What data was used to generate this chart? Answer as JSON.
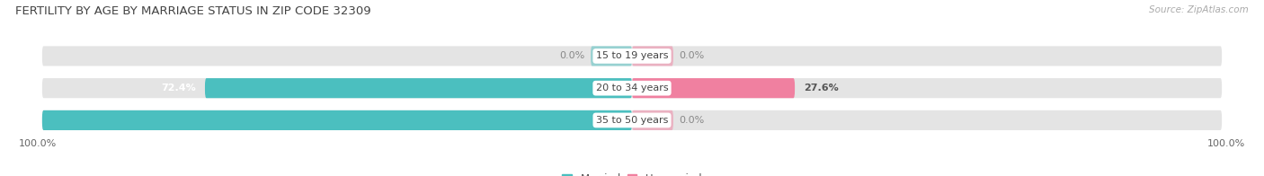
{
  "title": "FERTILITY BY AGE BY MARRIAGE STATUS IN ZIP CODE 32309",
  "source": "Source: ZipAtlas.com",
  "categories": [
    "15 to 19 years",
    "20 to 34 years",
    "35 to 50 years"
  ],
  "married_pct": [
    0.0,
    72.4,
    100.0
  ],
  "unmarried_pct": [
    0.0,
    27.6,
    0.0
  ],
  "married_color": "#4bbfbf",
  "unmarried_color": "#f080a0",
  "bar_bg_color": "#e4e4e4",
  "bar_height": 0.62,
  "title_fontsize": 9.5,
  "source_fontsize": 7.5,
  "cat_label_fontsize": 8.0,
  "val_label_fontsize": 8.0,
  "axis_label_fontsize": 8.0,
  "legend_fontsize": 8.5,
  "x_left_label": "100.0%",
  "x_right_label": "100.0%",
  "xlim_left": -100,
  "xlim_right": 100,
  "small_bar_pct": 7.0,
  "bar_rounding": 0.25
}
